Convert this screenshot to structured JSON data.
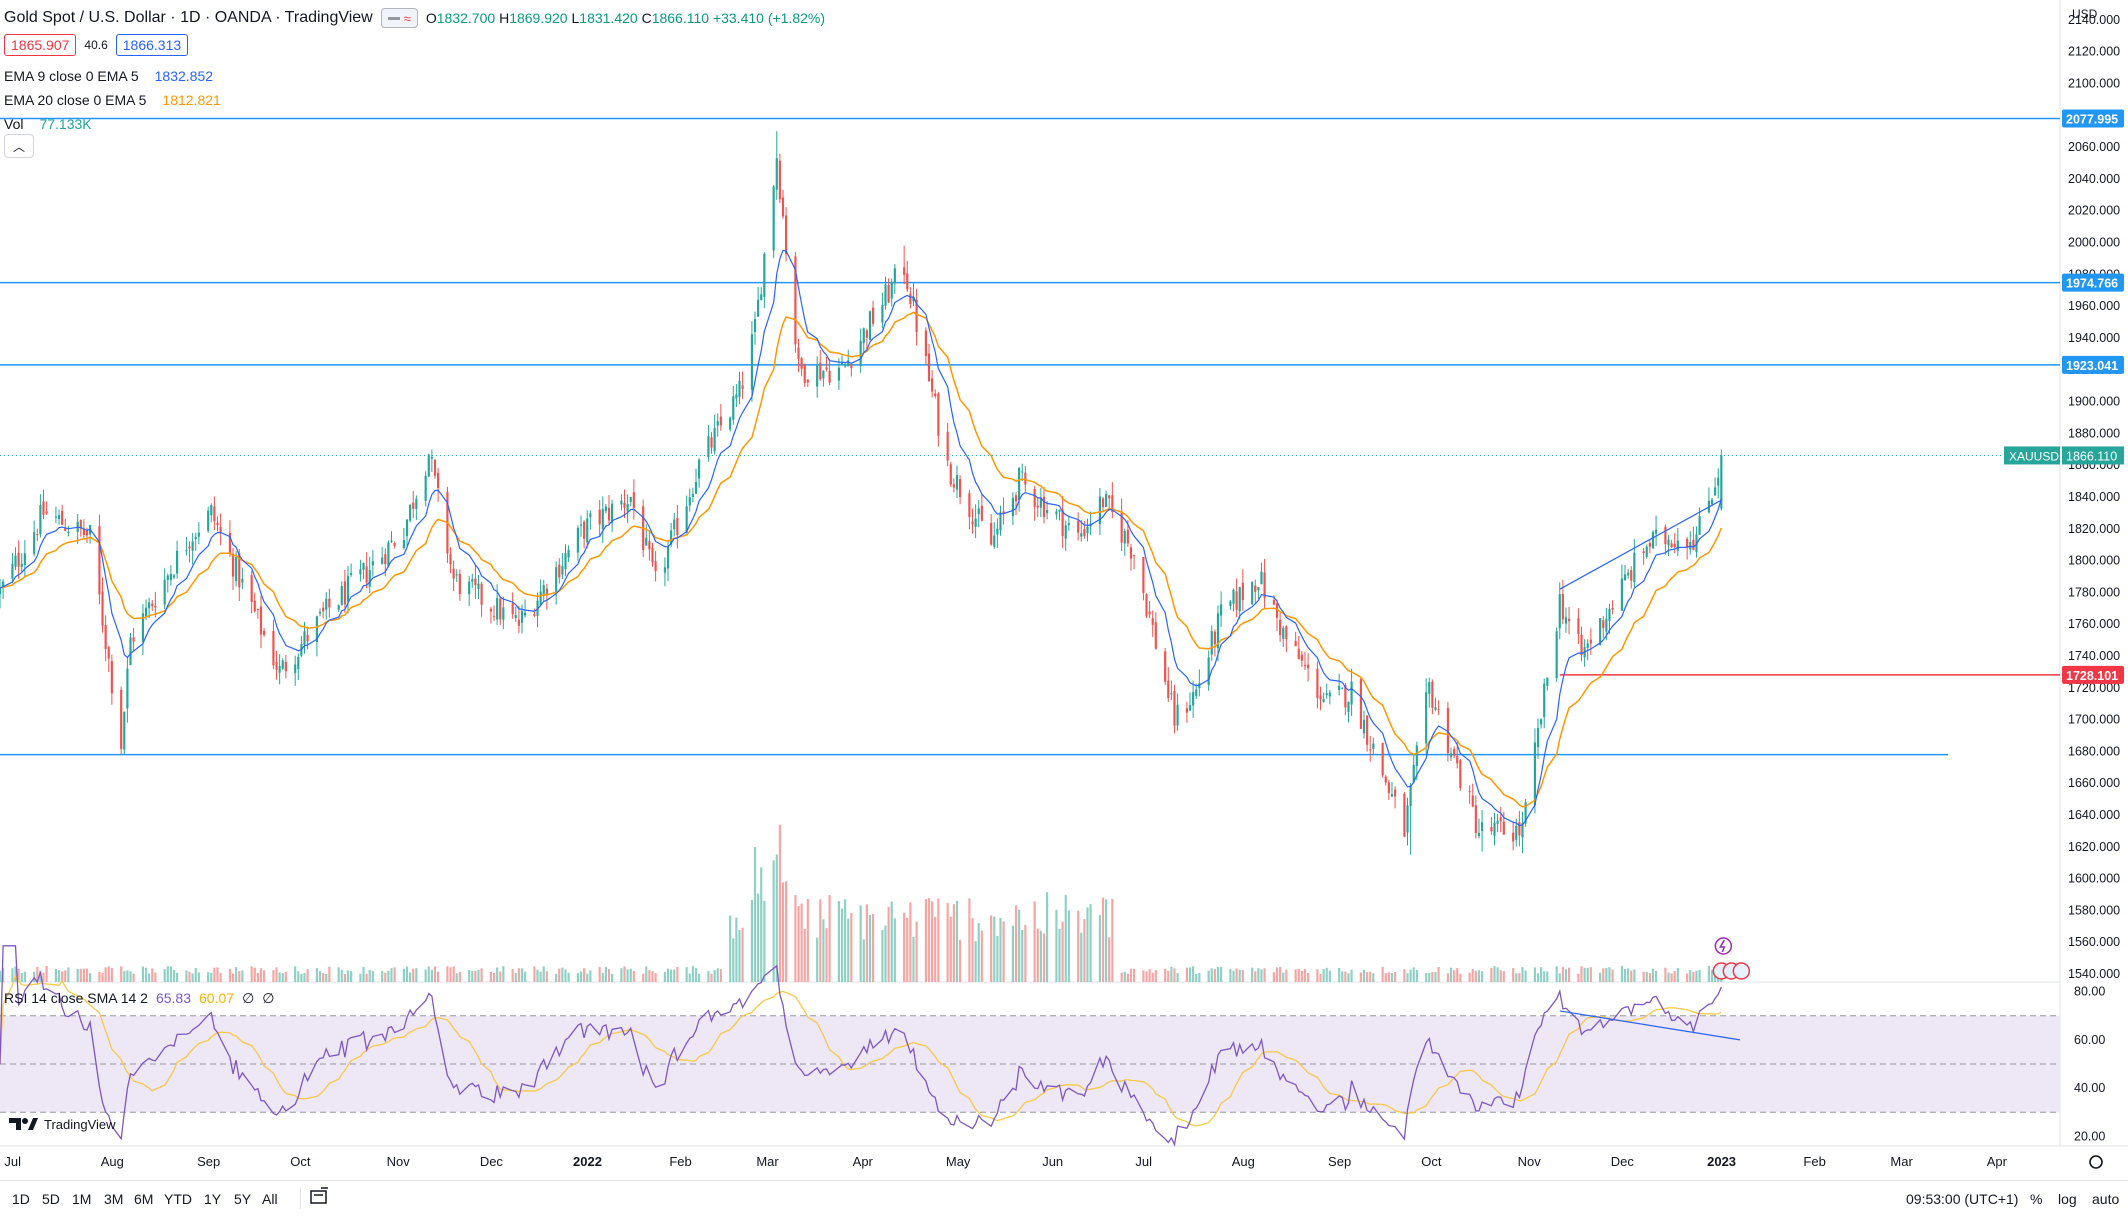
{
  "header": {
    "title": "Gold Spot / U.S. Dollar · 1D · OANDA · TradingView",
    "ohlc": {
      "o_label": "O",
      "o": "1832.700",
      "h_label": "H",
      "h": "1869.920",
      "l_label": "L",
      "l": "1831.420",
      "c_label": "C",
      "c": "1866.110",
      "change": "+33.410 (+1.82%)"
    },
    "bid": "1865.907",
    "spread": "40.6",
    "ask": "1866.313"
  },
  "indicators": {
    "ema9": {
      "label": "EMA 9 close 0 EMA 5",
      "value": "1832.852",
      "color": "#2962ff"
    },
    "ema20": {
      "label": "EMA 20 close 0 EMA 5",
      "value": "1812.821",
      "color": "#ff9800"
    },
    "vol": {
      "label": "Vol",
      "value": "77.133K",
      "color": "#26a69a"
    },
    "rsi": {
      "label": "RSI 14 close SMA 14 2",
      "value": "65.83",
      "sma": "60.07",
      "extra1": "∅",
      "extra2": "∅",
      "color": "#7e57c2",
      "sma_color": "#f7c948"
    }
  },
  "price_axis": {
    "currency": "USD",
    "ticks": [
      "2140.000",
      "2120.000",
      "2100.000",
      "2080.000",
      "2060.000",
      "2040.000",
      "2020.000",
      "2000.000",
      "1980.000",
      "1960.000",
      "1940.000",
      "1920.000",
      "1900.000",
      "1880.000",
      "1860.000",
      "1840.000",
      "1820.000",
      "1800.000",
      "1780.000",
      "1760.000",
      "1740.000",
      "1720.000",
      "1700.000",
      "1680.000",
      "1660.000",
      "1640.000",
      "1620.000",
      "1600.000",
      "1580.000",
      "1560.000",
      "1540.000"
    ],
    "level_labels": [
      {
        "value": "2077.995",
        "color": "#2196f3"
      },
      {
        "value": "1974.766",
        "color": "#2196f3"
      },
      {
        "value": "1923.041",
        "color": "#2196f3"
      },
      {
        "value": "1728.101",
        "color": "#f23645"
      }
    ],
    "symbol_tag": "XAUUSD",
    "last_price": "1866.110"
  },
  "rsi_axis": {
    "ticks": [
      "80.00",
      "60.00",
      "40.00",
      "20.00"
    ]
  },
  "time_axis": {
    "labels": [
      "Jul",
      "Aug",
      "Sep",
      "Oct",
      "Nov",
      "Dec",
      "2022",
      "Feb",
      "Mar",
      "Apr",
      "May",
      "Jun",
      "Jul",
      "Aug",
      "Sep",
      "Oct",
      "Nov",
      "Dec",
      "2023",
      "Feb",
      "Mar",
      "Apr"
    ]
  },
  "chart_data": {
    "type": "candlestick",
    "symbol": "XAUUSD",
    "interval": "1D",
    "ylim": [
      1535,
      2150
    ],
    "rsi_ylim": [
      16,
      84
    ],
    "x_range": [
      "2021-07-01",
      "2023-04-25"
    ],
    "anchors": [
      [
        "2021-07-01",
        1780
      ],
      [
        "2021-07-15",
        1830
      ],
      [
        "2021-07-30",
        1815
      ],
      [
        "2021-08-09",
        1685
      ],
      [
        "2021-08-12",
        1750
      ],
      [
        "2021-08-31",
        1815
      ],
      [
        "2021-09-07",
        1830
      ],
      [
        "2021-09-29",
        1730
      ],
      [
        "2021-10-15",
        1770
      ],
      [
        "2021-10-28",
        1795
      ],
      [
        "2021-11-08",
        1820
      ],
      [
        "2021-11-16",
        1868
      ],
      [
        "2021-11-24",
        1788
      ],
      [
        "2021-12-15",
        1760
      ],
      [
        "2022-01-05",
        1820
      ],
      [
        "2022-01-20",
        1840
      ],
      [
        "2022-01-28",
        1785
      ],
      [
        "2022-02-11",
        1860
      ],
      [
        "2022-02-24",
        1905
      ],
      [
        "2022-03-01",
        1945
      ],
      [
        "2022-03-08",
        2055
      ],
      [
        "2022-03-15",
        1920
      ],
      [
        "2022-03-29",
        1920
      ],
      [
        "2022-04-18",
        1985
      ],
      [
        "2022-05-02",
        1860
      ],
      [
        "2022-05-16",
        1810
      ],
      [
        "2022-05-25",
        1850
      ],
      [
        "2022-06-13",
        1815
      ],
      [
        "2022-06-21",
        1838
      ],
      [
        "2022-07-01",
        1805
      ],
      [
        "2022-07-14",
        1700
      ],
      [
        "2022-07-21",
        1718
      ],
      [
        "2022-07-29",
        1765
      ],
      [
        "2022-08-10",
        1790
      ],
      [
        "2022-08-19",
        1750
      ],
      [
        "2022-09-01",
        1710
      ],
      [
        "2022-09-09",
        1718
      ],
      [
        "2022-09-26",
        1630
      ],
      [
        "2022-10-04",
        1720
      ],
      [
        "2022-10-20",
        1630
      ],
      [
        "2022-11-03",
        1630
      ],
      [
        "2022-11-15",
        1775
      ],
      [
        "2022-11-22",
        1740
      ],
      [
        "2022-12-13",
        1810
      ],
      [
        "2022-12-21",
        1815
      ],
      [
        "2022-12-29",
        1815
      ],
      [
        "2023-01-04",
        1850
      ],
      [
        "2023-01-06",
        1866.11
      ]
    ],
    "ohlc_last": {
      "open": 1832.7,
      "high": 1869.92,
      "low": 1831.42,
      "close": 1866.11
    },
    "ema_periods": [
      9,
      20
    ],
    "rsi_period": 14,
    "rsi_sma_period": 14,
    "rsi_bands": [
      70,
      50,
      30
    ],
    "horizontal_levels": [
      {
        "price": 2077.995,
        "color": "#2196f3"
      },
      {
        "price": 1974.766,
        "color": "#2196f3"
      },
      {
        "price": 1923.041,
        "color": "#2196f3"
      },
      {
        "price": 1728.101,
        "color": "#f23645",
        "from": "2022-11-15"
      },
      {
        "price": 1678.0,
        "color": "#2196f3",
        "to": "2023-03-20"
      }
    ],
    "trendlines": [
      {
        "pane": "price",
        "from": [
          "2022-11-15",
          1782
        ],
        "to": [
          "2023-01-06",
          1838
        ],
        "color": "#2962ff"
      },
      {
        "pane": "rsi",
        "from": [
          "2022-11-15",
          72
        ],
        "to": [
          "2023-01-12",
          60
        ],
        "color": "#2962ff"
      }
    ],
    "colors": {
      "up": "#26a69a",
      "down": "#ef5350",
      "up_vol": "#8fd0c5",
      "down_vol": "#f5a6a4",
      "rsi_band_fill": "#ede7f6"
    }
  },
  "bottom_bar": {
    "timeframes": [
      "1D",
      "5D",
      "1M",
      "3M",
      "6M",
      "YTD",
      "1Y",
      "5Y",
      "All"
    ],
    "clock": "09:53:00 (UTC+1)",
    "percent": "%",
    "log": "log",
    "auto": "auto"
  },
  "branding": {
    "logo_text": "TradingView"
  }
}
